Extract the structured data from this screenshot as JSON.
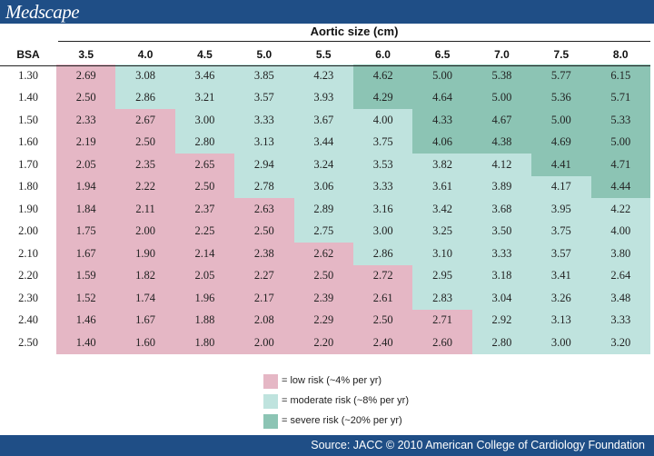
{
  "brand": "Medscape",
  "table": {
    "title": "Aortic size (cm)",
    "row_header": "BSA",
    "columns": [
      "3.5",
      "4.0",
      "4.5",
      "5.0",
      "5.5",
      "6.0",
      "6.5",
      "7.0",
      "7.5",
      "8.0"
    ],
    "rows": [
      {
        "bsa": "1.30",
        "values": [
          "2.69",
          "3.08",
          "3.46",
          "3.85",
          "4.23",
          "4.62",
          "5.00",
          "5.38",
          "5.77",
          "6.15"
        ],
        "risk": [
          "low",
          "mod",
          "mod",
          "mod",
          "mod",
          "sev",
          "sev",
          "sev",
          "sev",
          "sev"
        ]
      },
      {
        "bsa": "1.40",
        "values": [
          "2.50",
          "2.86",
          "3.21",
          "3.57",
          "3.93",
          "4.29",
          "4.64",
          "5.00",
          "5.36",
          "5.71"
        ],
        "risk": [
          "low",
          "mod",
          "mod",
          "mod",
          "mod",
          "sev",
          "sev",
          "sev",
          "sev",
          "sev"
        ]
      },
      {
        "bsa": "1.50",
        "values": [
          "2.33",
          "2.67",
          "3.00",
          "3.33",
          "3.67",
          "4.00",
          "4.33",
          "4.67",
          "5.00",
          "5.33"
        ],
        "risk": [
          "low",
          "low",
          "mod",
          "mod",
          "mod",
          "mod",
          "sev",
          "sev",
          "sev",
          "sev"
        ]
      },
      {
        "bsa": "1.60",
        "values": [
          "2.19",
          "2.50",
          "2.80",
          "3.13",
          "3.44",
          "3.75",
          "4.06",
          "4.38",
          "4.69",
          "5.00"
        ],
        "risk": [
          "low",
          "low",
          "mod",
          "mod",
          "mod",
          "mod",
          "sev",
          "sev",
          "sev",
          "sev"
        ]
      },
      {
        "bsa": "1.70",
        "values": [
          "2.05",
          "2.35",
          "2.65",
          "2.94",
          "3.24",
          "3.53",
          "3.82",
          "4.12",
          "4.41",
          "4.71"
        ],
        "risk": [
          "low",
          "low",
          "low",
          "mod",
          "mod",
          "mod",
          "mod",
          "mod",
          "sev",
          "sev"
        ]
      },
      {
        "bsa": "1.80",
        "values": [
          "1.94",
          "2.22",
          "2.50",
          "2.78",
          "3.06",
          "3.33",
          "3.61",
          "3.89",
          "4.17",
          "4.44"
        ],
        "risk": [
          "low",
          "low",
          "low",
          "mod",
          "mod",
          "mod",
          "mod",
          "mod",
          "mod",
          "sev"
        ]
      },
      {
        "bsa": "1.90",
        "values": [
          "1.84",
          "2.11",
          "2.37",
          "2.63",
          "2.89",
          "3.16",
          "3.42",
          "3.68",
          "3.95",
          "4.22"
        ],
        "risk": [
          "low",
          "low",
          "low",
          "low",
          "mod",
          "mod",
          "mod",
          "mod",
          "mod",
          "mod"
        ]
      },
      {
        "bsa": "2.00",
        "values": [
          "1.75",
          "2.00",
          "2.25",
          "2.50",
          "2.75",
          "3.00",
          "3.25",
          "3.50",
          "3.75",
          "4.00"
        ],
        "risk": [
          "low",
          "low",
          "low",
          "low",
          "mod",
          "mod",
          "mod",
          "mod",
          "mod",
          "mod"
        ]
      },
      {
        "bsa": "2.10",
        "values": [
          "1.67",
          "1.90",
          "2.14",
          "2.38",
          "2.62",
          "2.86",
          "3.10",
          "3.33",
          "3.57",
          "3.80"
        ],
        "risk": [
          "low",
          "low",
          "low",
          "low",
          "low",
          "mod",
          "mod",
          "mod",
          "mod",
          "mod"
        ]
      },
      {
        "bsa": "2.20",
        "values": [
          "1.59",
          "1.82",
          "2.05",
          "2.27",
          "2.50",
          "2.72",
          "2.95",
          "3.18",
          "3.41",
          "2.64"
        ],
        "risk": [
          "low",
          "low",
          "low",
          "low",
          "low",
          "low",
          "mod",
          "mod",
          "mod",
          "mod"
        ]
      },
      {
        "bsa": "2.30",
        "values": [
          "1.52",
          "1.74",
          "1.96",
          "2.17",
          "2.39",
          "2.61",
          "2.83",
          "3.04",
          "3.26",
          "3.48"
        ],
        "risk": [
          "low",
          "low",
          "low",
          "low",
          "low",
          "low",
          "mod",
          "mod",
          "mod",
          "mod"
        ]
      },
      {
        "bsa": "2.40",
        "values": [
          "1.46",
          "1.67",
          "1.88",
          "2.08",
          "2.29",
          "2.50",
          "2.71",
          "2.92",
          "3.13",
          "3.33"
        ],
        "risk": [
          "low",
          "low",
          "low",
          "low",
          "low",
          "low",
          "low",
          "mod",
          "mod",
          "mod"
        ]
      },
      {
        "bsa": "2.50",
        "values": [
          "1.40",
          "1.60",
          "1.80",
          "2.00",
          "2.20",
          "2.40",
          "2.60",
          "2.80",
          "3.00",
          "3.20"
        ],
        "risk": [
          "low",
          "low",
          "low",
          "low",
          "low",
          "low",
          "low",
          "mod",
          "mod",
          "mod"
        ]
      }
    ]
  },
  "legend": {
    "low": {
      "label": "= low risk (~4% per yr)",
      "color": "#e5b7c5"
    },
    "moderate": {
      "label": "= moderate risk (~8% per yr)",
      "color": "#bfe3de"
    },
    "severe": {
      "label": "= severe risk (~20% per yr)",
      "color": "#8cc4b4"
    }
  },
  "footer": {
    "source": "Source: JACC © 2010 American College of Cardiology Foundation"
  }
}
